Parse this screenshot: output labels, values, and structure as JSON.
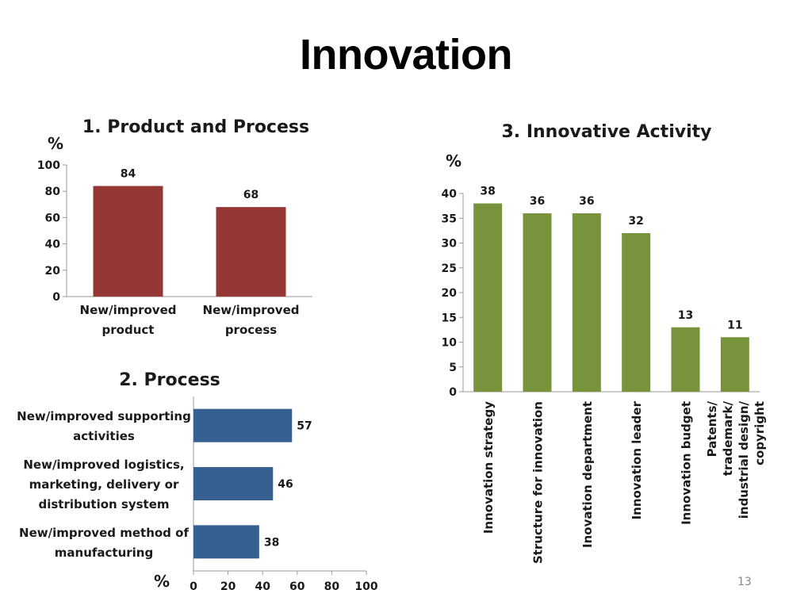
{
  "slide": {
    "title": "Innovation",
    "page_number": "13"
  },
  "chart_data": [
    {
      "type": "bar",
      "title": "1. Product and Process",
      "ylabel": "%",
      "ylim": [
        0,
        100
      ],
      "yticks": [
        0,
        20,
        40,
        60,
        80,
        100
      ],
      "categories": [
        [
          "New/improved",
          "product"
        ],
        [
          "New/improved",
          "process"
        ]
      ],
      "values": [
        84,
        68
      ],
      "color": "#953735",
      "grid": false
    },
    {
      "type": "bar",
      "orientation": "horizontal",
      "title": "2. Process",
      "xlabel": "%",
      "xlim": [
        0,
        100
      ],
      "xticks": [
        0,
        20,
        40,
        60,
        80,
        100
      ],
      "categories": [
        [
          "New/improved supporting",
          "activities"
        ],
        [
          "New/improved logistics,",
          "marketing, delivery or",
          "distribution system"
        ],
        [
          "New/improved method of",
          "manufacturing"
        ]
      ],
      "values": [
        57,
        46,
        38
      ],
      "color": "#376092",
      "grid": false
    },
    {
      "type": "bar",
      "title": "3. Innovative Activity",
      "ylabel": "%",
      "ylim": [
        0,
        40
      ],
      "yticks": [
        0,
        5,
        10,
        15,
        20,
        25,
        30,
        35,
        40
      ],
      "categories": [
        [
          "Innovation strategy"
        ],
        [
          "Structure for innovation"
        ],
        [
          "Inovation department"
        ],
        [
          "Innovation leader"
        ],
        [
          "Innovation budget"
        ],
        [
          "Patents/",
          "trademark/",
          "industrial design/",
          "copyright"
        ]
      ],
      "values": [
        38,
        36,
        36,
        32,
        13,
        11
      ],
      "color": "#77933C",
      "grid": false
    }
  ]
}
